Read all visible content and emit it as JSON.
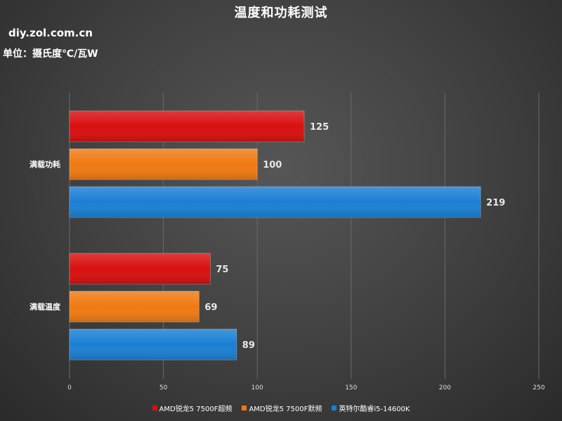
{
  "chart_data": {
    "type": "bar",
    "orientation": "horizontal",
    "title": "温度和功耗测试",
    "source": "diy.zol.com.cn",
    "unit_label": "单位：摄氏度℃/瓦W",
    "categories": [
      "满载功耗",
      "满载温度"
    ],
    "series": [
      {
        "name": "AMD锐龙5 7500F超频",
        "color": "#d90f0f",
        "values": [
          125,
          75
        ]
      },
      {
        "name": "AMD锐龙5 7500F默频",
        "color": "#f07a12",
        "values": [
          100,
          69
        ]
      },
      {
        "name": "英特尔酷睿i5-14600K",
        "color": "#1a7fd4",
        "values": [
          219,
          89
        ]
      }
    ],
    "xlim": [
      0,
      250
    ],
    "x_ticks": [
      0,
      50,
      100,
      150,
      200,
      250
    ],
    "grid": true,
    "legend_position": "bottom"
  }
}
